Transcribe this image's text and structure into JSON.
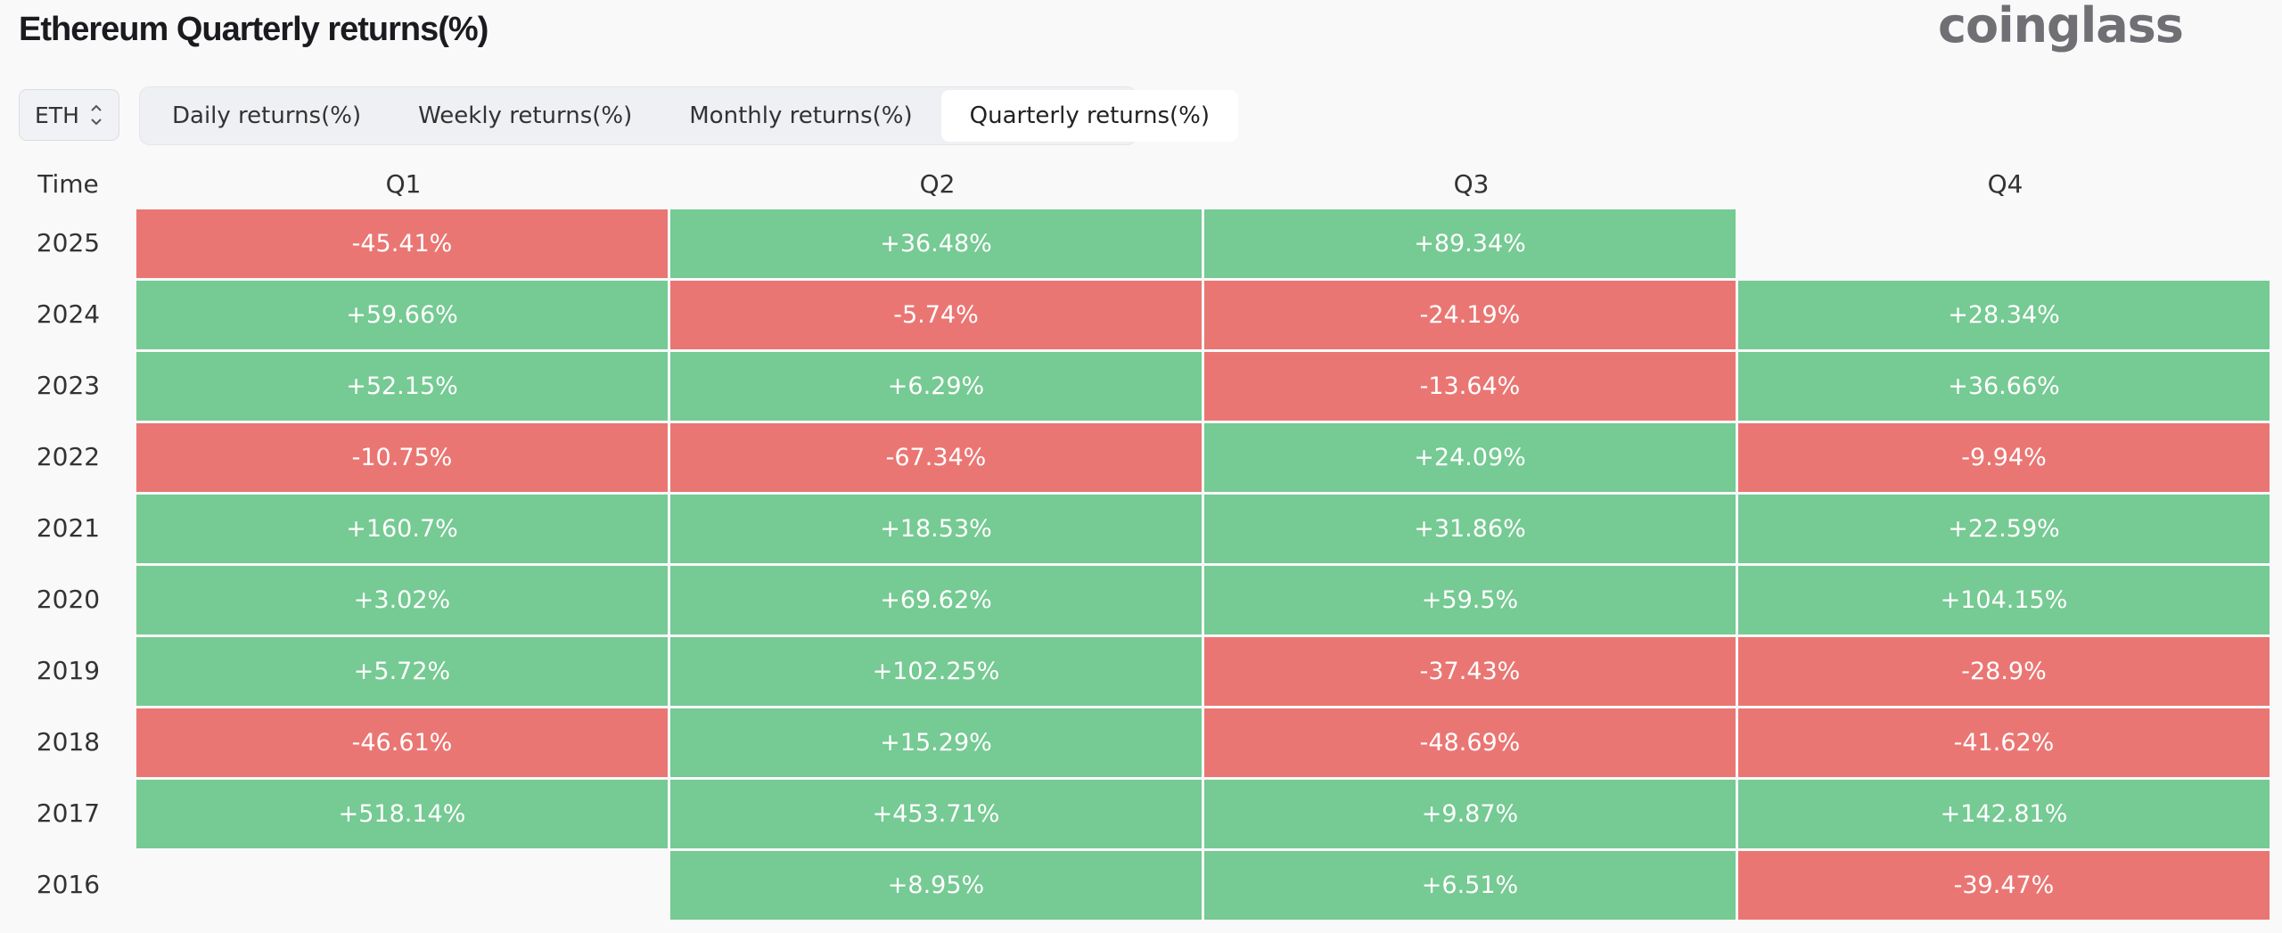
{
  "page": {
    "title": "Ethereum Quarterly returns(%)",
    "logo_text": "coinglass"
  },
  "coin_select": {
    "value": "ETH"
  },
  "tabs": [
    {
      "label": "Daily returns(%)",
      "active": false
    },
    {
      "label": "Weekly returns(%)",
      "active": false
    },
    {
      "label": "Monthly returns(%)",
      "active": false
    },
    {
      "label": "Quarterly returns(%)",
      "active": true
    }
  ],
  "table": {
    "headers": [
      "Time",
      "Q1",
      "Q2",
      "Q3",
      "Q4"
    ],
    "rows": [
      {
        "year": "2025",
        "cells": [
          "-45.41%",
          "+36.48%",
          "+89.34%",
          ""
        ]
      },
      {
        "year": "2024",
        "cells": [
          "+59.66%",
          "-5.74%",
          "-24.19%",
          "+28.34%"
        ]
      },
      {
        "year": "2023",
        "cells": [
          "+52.15%",
          "+6.29%",
          "-13.64%",
          "+36.66%"
        ]
      },
      {
        "year": "2022",
        "cells": [
          "-10.75%",
          "-67.34%",
          "+24.09%",
          "-9.94%"
        ]
      },
      {
        "year": "2021",
        "cells": [
          "+160.7%",
          "+18.53%",
          "+31.86%",
          "+22.59%"
        ]
      },
      {
        "year": "2020",
        "cells": [
          "+3.02%",
          "+69.62%",
          "+59.5%",
          "+104.15%"
        ]
      },
      {
        "year": "2019",
        "cells": [
          "+5.72%",
          "+102.25%",
          "-37.43%",
          "-28.9%"
        ]
      },
      {
        "year": "2018",
        "cells": [
          "-46.61%",
          "+15.29%",
          "-48.69%",
          "-41.62%"
        ]
      },
      {
        "year": "2017",
        "cells": [
          "+518.14%",
          "+453.71%",
          "+9.87%",
          "+142.81%"
        ]
      },
      {
        "year": "2016",
        "cells": [
          "",
          "+8.95%",
          "+6.51%",
          "-39.47%"
        ]
      }
    ]
  },
  "colors": {
    "positive": "#76ca93",
    "negative": "#ea7673",
    "background": "#f9f9fa"
  }
}
